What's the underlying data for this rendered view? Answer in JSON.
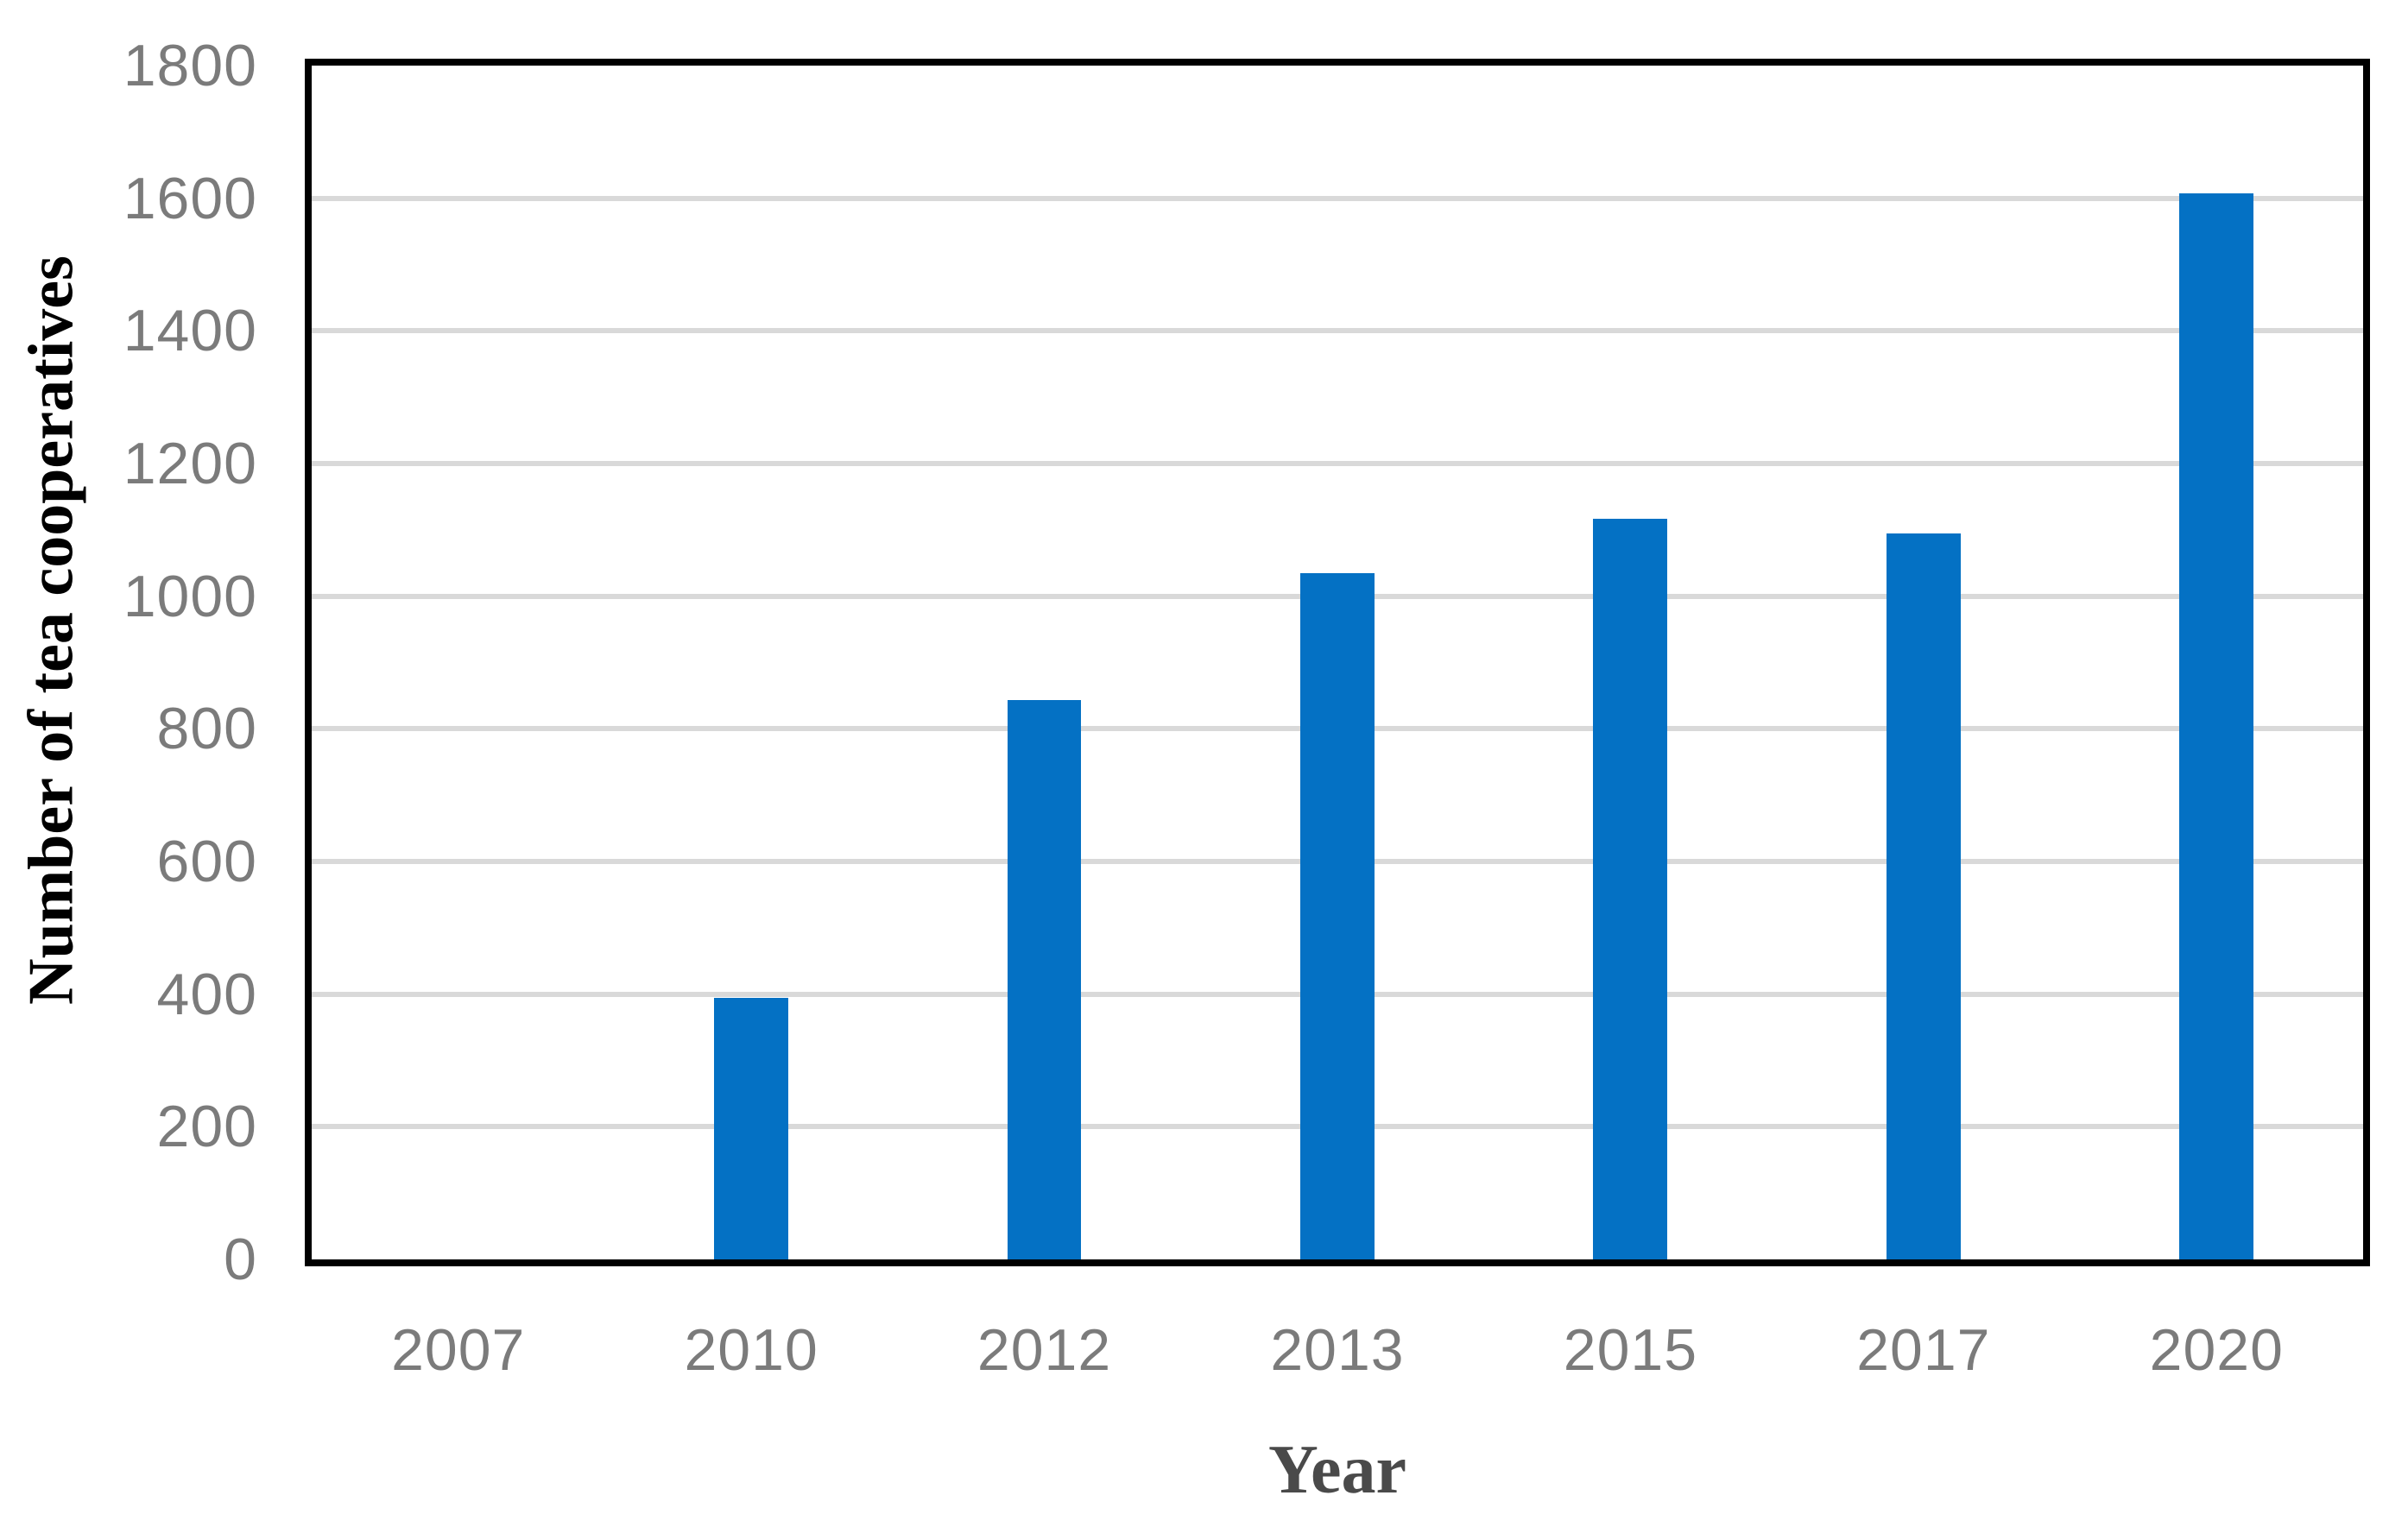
{
  "chart_data": {
    "type": "bar",
    "title": "",
    "categories": [
      "2007",
      "2010",
      "2012",
      "2013",
      "2015",
      "2017",
      "2020"
    ],
    "values": [
      0,
      395,
      843,
      1035,
      1117,
      1095,
      1607
    ],
    "xlabel": "Year",
    "ylabel": "Number of tea cooperatives",
    "ylim": [
      0,
      1800
    ],
    "yticks": [
      0,
      200,
      400,
      600,
      800,
      1000,
      1200,
      1400,
      1600,
      1800
    ],
    "grid": true,
    "legend": false,
    "layout": {
      "legend_position": "none",
      "plot_border": "black box",
      "gridlines": "horizontal only"
    },
    "colors": {
      "bar": "#0471C4",
      "gridline": "#D9D9D9",
      "axis_border": "#000000",
      "tick_labels": "#7B7B7B",
      "xlabel_text": "#4A4A4A",
      "ylabel_text": "#000000",
      "background": "#FFFFFF"
    }
  }
}
